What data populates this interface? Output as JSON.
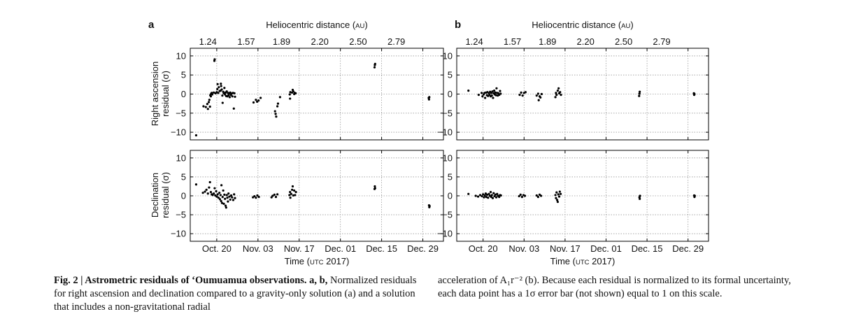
{
  "figure": {
    "panel_labels": [
      "a",
      "b"
    ],
    "top_axis_label": "Heliocentric distance (AU)",
    "top_axis_label_parts": [
      "Heliocentric distance (",
      "AU",
      ")"
    ],
    "bottom_axis_label_parts": [
      "Time (",
      "UTC",
      " 2017)"
    ],
    "ylabel_ra": [
      "Right ascension",
      "residual (σ)"
    ],
    "ylabel_dec": [
      "Declination",
      "residual (σ)"
    ]
  },
  "caption": {
    "bold": "Fig. 2 | Astrometric residuals of ʻOumuamua observations. a, b,",
    "left_text": " Normalized residuals for right ascension and declination compared to a gravity-only solution (a) and a solution that includes a non-gravitational radial",
    "right_text": "acceleration of A₁r⁻² (b). Because each residual is normalized to its formal uncertainty, each data point has a 1σ error bar (not shown) equal to 1 on this scale."
  },
  "chart_data": [
    {
      "type": "scatter",
      "panel": "a",
      "row": "Right ascension",
      "color": "#000000",
      "xlim": [
        0,
        86
      ],
      "ylim": [
        -12,
        12
      ],
      "x_ticks": [
        {
          "value": 9,
          "label": "Oct. 20"
        },
        {
          "value": 23,
          "label": "Nov. 03"
        },
        {
          "value": 37,
          "label": "Nov. 17"
        },
        {
          "value": 51,
          "label": "Dec. 01"
        },
        {
          "value": 65,
          "label": "Dec. 15"
        },
        {
          "value": 79,
          "label": "Dec. 29"
        }
      ],
      "top_ticks": [
        {
          "value": 6,
          "label": "1.24"
        },
        {
          "value": 19,
          "label": "1.57"
        },
        {
          "value": 31,
          "label": "1.89"
        },
        {
          "value": 44,
          "label": "2.20"
        },
        {
          "value": 57,
          "label": "2.50"
        },
        {
          "value": 70,
          "label": "2.79"
        }
      ],
      "y_ticks": [
        10,
        5,
        0,
        -5,
        -10
      ],
      "grid": true,
      "points": [
        [
          2,
          -10.8
        ],
        [
          4.5,
          -3.2
        ],
        [
          5.3,
          -3.4
        ],
        [
          5.8,
          -2.6
        ],
        [
          6.0,
          -3.9
        ],
        [
          6.3,
          -2.1
        ],
        [
          6.5,
          -1.5
        ],
        [
          6.7,
          -3.3
        ],
        [
          6.8,
          -0.3
        ],
        [
          7.0,
          -0.6
        ],
        [
          7.1,
          0.1
        ],
        [
          7.3,
          0.3
        ],
        [
          7.5,
          -0.1
        ],
        [
          8.0,
          0.4
        ],
        [
          8.2,
          8.7
        ],
        [
          8.3,
          9.1
        ],
        [
          8.6,
          0.2
        ],
        [
          9.0,
          0.5
        ],
        [
          9.2,
          1.3
        ],
        [
          9.3,
          2.6
        ],
        [
          9.5,
          0.3
        ],
        [
          9.7,
          1.8
        ],
        [
          10.0,
          0.8
        ],
        [
          10.3,
          0.9
        ],
        [
          10.4,
          2.7
        ],
        [
          10.5,
          2.1
        ],
        [
          10.7,
          1.2
        ],
        [
          10.9,
          -0.4
        ],
        [
          11.0,
          -2.3
        ],
        [
          11.2,
          0.6
        ],
        [
          11.4,
          0.2
        ],
        [
          11.6,
          1.6
        ],
        [
          11.8,
          -0.1
        ],
        [
          12.0,
          0.4
        ],
        [
          12.2,
          -0.5
        ],
        [
          12.4,
          0.7
        ],
        [
          12.6,
          -0.6
        ],
        [
          12.8,
          0.3
        ],
        [
          13.0,
          -0.3
        ],
        [
          13.2,
          0.2
        ],
        [
          13.4,
          -0.8
        ],
        [
          13.6,
          0.4
        ],
        [
          13.8,
          -0.2
        ],
        [
          14.0,
          0.1
        ],
        [
          14.3,
          -0.6
        ],
        [
          14.5,
          0.3
        ],
        [
          14.8,
          -3.8
        ],
        [
          15.0,
          0.2
        ],
        [
          15.2,
          -0.7
        ],
        [
          21.5,
          -2.2
        ],
        [
          22.3,
          -1.5
        ],
        [
          22.7,
          -2.0
        ],
        [
          23.2,
          -1.7
        ],
        [
          23.9,
          -1.0
        ],
        [
          28.8,
          -4.5
        ],
        [
          29.0,
          -5.2
        ],
        [
          29.2,
          -5.9
        ],
        [
          29.6,
          -3.2
        ],
        [
          29.8,
          -2.5
        ],
        [
          30.5,
          -0.8
        ],
        [
          33.8,
          -0.1
        ],
        [
          33.9,
          -1.2
        ],
        [
          34.0,
          0.5
        ],
        [
          34.6,
          0.4
        ],
        [
          34.8,
          1.1
        ],
        [
          35.0,
          0.7
        ],
        [
          35.3,
          0.0
        ],
        [
          35.5,
          0.3
        ],
        [
          35.8,
          0.2
        ],
        [
          62.6,
          7.0
        ],
        [
          62.7,
          7.6
        ],
        [
          62.8,
          7.9
        ],
        [
          81.0,
          -1.0
        ],
        [
          81.1,
          -1.4
        ],
        [
          81.2,
          -0.8
        ]
      ]
    },
    {
      "type": "scatter",
      "panel": "b",
      "row": "Right ascension",
      "color": "#000000",
      "xlim": [
        0,
        86
      ],
      "ylim": [
        -12,
        12
      ],
      "x_ticks": [
        {
          "value": 9,
          "label": "Oct. 20"
        },
        {
          "value": 23,
          "label": "Nov. 03"
        },
        {
          "value": 37,
          "label": "Nov. 17"
        },
        {
          "value": 51,
          "label": "Dec. 01"
        },
        {
          "value": 65,
          "label": "Dec. 15"
        },
        {
          "value": 79,
          "label": "Dec. 29"
        }
      ],
      "top_ticks": [
        {
          "value": 6,
          "label": "1.24"
        },
        {
          "value": 19,
          "label": "1.57"
        },
        {
          "value": 31,
          "label": "1.89"
        },
        {
          "value": 44,
          "label": "2.20"
        },
        {
          "value": 57,
          "label": "2.50"
        },
        {
          "value": 70,
          "label": "2.79"
        }
      ],
      "y_ticks": [
        10,
        5,
        0,
        -5,
        -10
      ],
      "grid": true,
      "points": [
        [
          4,
          0.9
        ],
        [
          7.5,
          -0.2
        ],
        [
          8.5,
          0.3
        ],
        [
          8.8,
          -0.6
        ],
        [
          9.2,
          -0.1
        ],
        [
          9.5,
          0.3
        ],
        [
          9.7,
          -1.0
        ],
        [
          10.0,
          0.4
        ],
        [
          10.3,
          -0.3
        ],
        [
          10.5,
          0.5
        ],
        [
          10.7,
          -0.5
        ],
        [
          11.0,
          0.2
        ],
        [
          11.2,
          -0.2
        ],
        [
          11.4,
          0.6
        ],
        [
          11.6,
          -0.6
        ],
        [
          11.8,
          0.3
        ],
        [
          12.0,
          -0.4
        ],
        [
          12.2,
          0.7
        ],
        [
          12.4,
          -1.0
        ],
        [
          12.6,
          0.2
        ],
        [
          12.8,
          0.9
        ],
        [
          13.0,
          -0.1
        ],
        [
          13.2,
          0.4
        ],
        [
          13.4,
          -0.3
        ],
        [
          13.6,
          1.5
        ],
        [
          13.8,
          0.3
        ],
        [
          14.0,
          -0.4
        ],
        [
          14.2,
          0.2
        ],
        [
          14.5,
          -0.2
        ],
        [
          14.8,
          0.8
        ],
        [
          15.0,
          0.1
        ],
        [
          21.5,
          -0.2
        ],
        [
          22.0,
          0.4
        ],
        [
          22.5,
          -0.4
        ],
        [
          23.0,
          0.3
        ],
        [
          23.5,
          0.5
        ],
        [
          27.3,
          -0.4
        ],
        [
          27.8,
          0.1
        ],
        [
          28.0,
          -1.6
        ],
        [
          28.3,
          -0.6
        ],
        [
          28.6,
          -0.9
        ],
        [
          29.0,
          0.0
        ],
        [
          33.7,
          -0.8
        ],
        [
          33.9,
          0.3
        ],
        [
          34.1,
          -0.2
        ],
        [
          34.5,
          0.9
        ],
        [
          34.8,
          1.5
        ],
        [
          35.0,
          0.2
        ],
        [
          35.3,
          0.5
        ],
        [
          35.6,
          -0.2
        ],
        [
          62.3,
          -0.5
        ],
        [
          62.4,
          0.1
        ],
        [
          62.5,
          0.6
        ],
        [
          81.0,
          0.2
        ],
        [
          81.1,
          -0.2
        ],
        [
          81.2,
          0.0
        ]
      ]
    },
    {
      "type": "scatter",
      "panel": "a",
      "row": "Declination",
      "color": "#000000",
      "xlim": [
        0,
        86
      ],
      "ylim": [
        -12,
        12
      ],
      "x_ticks": [
        {
          "value": 9,
          "label": "Oct. 20"
        },
        {
          "value": 23,
          "label": "Nov. 03"
        },
        {
          "value": 37,
          "label": "Nov. 17"
        },
        {
          "value": 51,
          "label": "Dec. 01"
        },
        {
          "value": 65,
          "label": "Dec. 15"
        },
        {
          "value": 79,
          "label": "Dec. 29"
        }
      ],
      "top_ticks": [],
      "y_ticks": [
        10,
        5,
        0,
        -5,
        -10
      ],
      "grid": true,
      "points": [
        [
          2,
          3.0
        ],
        [
          4.3,
          0.8
        ],
        [
          5.0,
          1.1
        ],
        [
          5.5,
          1.6
        ],
        [
          6.0,
          0.6
        ],
        [
          6.4,
          2.2
        ],
        [
          6.7,
          3.6
        ],
        [
          7.0,
          1.0
        ],
        [
          7.3,
          0.4
        ],
        [
          7.6,
          0.2
        ],
        [
          8.0,
          0.6
        ],
        [
          8.3,
          2.0
        ],
        [
          8.5,
          0.1
        ],
        [
          8.8,
          1.2
        ],
        [
          9.0,
          -0.2
        ],
        [
          9.3,
          0.4
        ],
        [
          9.6,
          -0.5
        ],
        [
          9.9,
          0.8
        ],
        [
          10.1,
          -0.9
        ],
        [
          10.3,
          0.2
        ],
        [
          10.5,
          -1.4
        ],
        [
          10.6,
          2.8
        ],
        [
          10.8,
          -1.9
        ],
        [
          11.0,
          -0.3
        ],
        [
          11.2,
          1.4
        ],
        [
          11.4,
          -2.1
        ],
        [
          11.6,
          0.3
        ],
        [
          11.8,
          -0.8
        ],
        [
          12.0,
          -2.6
        ],
        [
          12.2,
          -3.1
        ],
        [
          12.4,
          0.2
        ],
        [
          12.6,
          -0.5
        ],
        [
          12.8,
          -1.5
        ],
        [
          13.0,
          0.6
        ],
        [
          13.3,
          -0.2
        ],
        [
          13.6,
          -1.0
        ],
        [
          13.9,
          0.1
        ],
        [
          14.2,
          -0.4
        ],
        [
          14.6,
          -1.1
        ],
        [
          14.9,
          0.4
        ],
        [
          15.2,
          -0.6
        ],
        [
          21.3,
          -0.4
        ],
        [
          21.8,
          -0.1
        ],
        [
          22.3,
          -0.5
        ],
        [
          22.8,
          0.1
        ],
        [
          23.3,
          -0.3
        ],
        [
          27.6,
          -0.4
        ],
        [
          28.0,
          0.0
        ],
        [
          28.6,
          0.3
        ],
        [
          29.1,
          -0.3
        ],
        [
          29.6,
          0.4
        ],
        [
          33.7,
          0.2
        ],
        [
          33.9,
          1.0
        ],
        [
          34.0,
          -0.5
        ],
        [
          34.3,
          0.5
        ],
        [
          34.6,
          1.6
        ],
        [
          34.8,
          2.5
        ],
        [
          35.0,
          0.1
        ],
        [
          35.3,
          1.4
        ],
        [
          35.6,
          0.2
        ],
        [
          35.9,
          1.0
        ],
        [
          62.6,
          1.8
        ],
        [
          62.7,
          2.5
        ],
        [
          62.8,
          2.0
        ],
        [
          81.1,
          -2.5
        ],
        [
          81.2,
          -3.0
        ],
        [
          81.3,
          -2.7
        ]
      ]
    },
    {
      "type": "scatter",
      "panel": "b",
      "row": "Declination",
      "color": "#000000",
      "xlim": [
        0,
        86
      ],
      "ylim": [
        -12,
        12
      ],
      "x_ticks": [
        {
          "value": 9,
          "label": "Oct. 20"
        },
        {
          "value": 23,
          "label": "Nov. 03"
        },
        {
          "value": 37,
          "label": "Nov. 17"
        },
        {
          "value": 51,
          "label": "Dec. 01"
        },
        {
          "value": 65,
          "label": "Dec. 15"
        },
        {
          "value": 79,
          "label": "Dec. 29"
        }
      ],
      "top_ticks": [],
      "y_ticks": [
        10,
        5,
        0,
        -5,
        -10
      ],
      "grid": true,
      "points": [
        [
          4,
          0.5
        ],
        [
          6.5,
          0.0
        ],
        [
          7.3,
          -0.2
        ],
        [
          8.0,
          0.2
        ],
        [
          8.6,
          -0.1
        ],
        [
          9.0,
          0.4
        ],
        [
          9.3,
          -0.4
        ],
        [
          9.6,
          0.1
        ],
        [
          9.9,
          0.6
        ],
        [
          10.1,
          -0.3
        ],
        [
          10.4,
          0.3
        ],
        [
          10.7,
          -0.5
        ],
        [
          11.0,
          0.5
        ],
        [
          11.3,
          0.0
        ],
        [
          11.6,
          1.0
        ],
        [
          11.8,
          -0.3
        ],
        [
          12.0,
          0.2
        ],
        [
          12.3,
          -0.6
        ],
        [
          12.6,
          0.7
        ],
        [
          12.9,
          -0.1
        ],
        [
          13.2,
          0.3
        ],
        [
          13.5,
          -0.4
        ],
        [
          13.8,
          0.5
        ],
        [
          14.1,
          0.0
        ],
        [
          14.5,
          -0.3
        ],
        [
          14.8,
          0.2
        ],
        [
          15.1,
          0.1
        ],
        [
          21.3,
          -0.1
        ],
        [
          21.8,
          0.3
        ],
        [
          22.3,
          -0.3
        ],
        [
          22.8,
          0.2
        ],
        [
          23.3,
          0.0
        ],
        [
          27.3,
          0.1
        ],
        [
          27.8,
          -0.3
        ],
        [
          28.3,
          0.3
        ],
        [
          28.8,
          0.0
        ],
        [
          33.7,
          0.2
        ],
        [
          33.9,
          -0.6
        ],
        [
          34.1,
          0.9
        ],
        [
          34.3,
          -1.1
        ],
        [
          34.5,
          -1.6
        ],
        [
          34.7,
          0.4
        ],
        [
          35.0,
          -0.2
        ],
        [
          35.2,
          1.1
        ],
        [
          35.5,
          0.5
        ],
        [
          62.4,
          -0.4
        ],
        [
          62.5,
          -0.8
        ],
        [
          62.6,
          0.0
        ],
        [
          81.1,
          0.1
        ],
        [
          81.2,
          -0.3
        ],
        [
          81.3,
          0.0
        ]
      ]
    }
  ]
}
